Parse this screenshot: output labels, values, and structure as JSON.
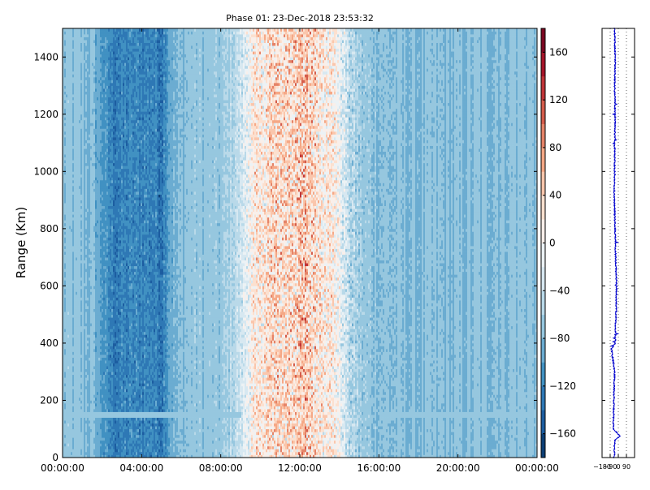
{
  "chart_data": [
    {
      "type": "heatmap",
      "title": "Phase 01: 23-Dec-2018 23:53:32",
      "xlabel": "",
      "ylabel": "Range (Km)",
      "x_ticks": [
        "00:00:00",
        "04:00:00",
        "08:00:00",
        "12:00:00",
        "16:00:00",
        "20:00:00",
        "00:00:00"
      ],
      "x_tick_hours": [
        0,
        4,
        8,
        12,
        16,
        20,
        24
      ],
      "xlim_hours": [
        0,
        24
      ],
      "y_ticks": [
        0,
        200,
        400,
        600,
        800,
        1000,
        1200,
        1400
      ],
      "ylim": [
        0,
        1500
      ],
      "colorbar": {
        "range": [
          -180,
          180
        ],
        "ticks": [
          160,
          120,
          80,
          40,
          0,
          -40,
          -80,
          -120,
          -160
        ],
        "tick_labels": [
          "160",
          "120",
          "80",
          "40",
          "0",
          "−40",
          "−80",
          "−120",
          "−160"
        ],
        "colormap": "RdBu_r",
        "levels": 18
      },
      "column_pattern_degrees": {
        "hours": [
          0,
          1.5,
          2.3,
          2.6,
          3.5,
          4.6,
          5.0,
          5.4,
          6.5,
          8.0,
          9.0,
          9.6,
          10.5,
          11.5,
          12.3,
          13.0,
          13.8,
          14.5,
          15.2,
          16.5,
          18.0,
          20.0,
          22.0,
          24
        ],
        "phase": [
          -75,
          -80,
          -115,
          -125,
          -120,
          -118,
          -130,
          -90,
          -72,
          -72,
          -40,
          10,
          30,
          35,
          45,
          25,
          10,
          -50,
          -70,
          -78,
          -80,
          -80,
          -76,
          -75
        ],
        "spread": [
          8,
          9,
          18,
          24,
          24,
          26,
          28,
          14,
          9,
          10,
          25,
          60,
          75,
          80,
          85,
          75,
          60,
          40,
          18,
          10,
          9,
          9,
          8,
          8
        ]
      },
      "band_range_km": 150
    },
    {
      "type": "line",
      "title": "",
      "x_ticks": [
        "−180",
        "−90",
        "0",
        "90"
      ],
      "x_tick_values": [
        -180,
        -90,
        0,
        90
      ],
      "xlim": [
        -180,
        180
      ],
      "ylim": [
        0,
        1500
      ],
      "grid": "vertical dotted",
      "color": "#0000cc",
      "profile_points": {
        "range_km": [
          0,
          60,
          75,
          100,
          200,
          300,
          380,
          400,
          500,
          600,
          700,
          800,
          900,
          1000,
          1100,
          1200,
          1300,
          1400,
          1500
        ],
        "phase": [
          -45,
          -40,
          20,
          -55,
          -50,
          -40,
          -75,
          -35,
          -25,
          -20,
          -30,
          -35,
          -45,
          -40,
          -40,
          -35,
          -40,
          -35,
          -40
        ]
      }
    }
  ]
}
